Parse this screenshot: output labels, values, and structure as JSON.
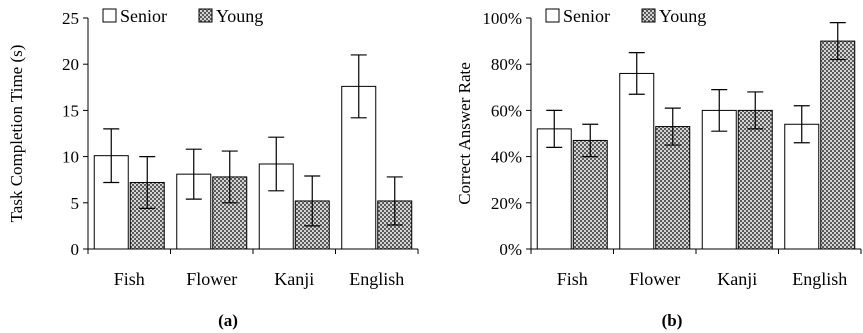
{
  "chart_data": [
    {
      "type": "bar",
      "caption": "(a)",
      "categories": [
        "Fish",
        "Flower",
        "Kanji",
        "English"
      ],
      "ylabel": "Task Completion Time (s)",
      "ylim": [
        0,
        25
      ],
      "yticks": [
        0,
        5,
        10,
        15,
        20,
        25
      ],
      "ytick_labels": [
        "0",
        "5",
        "10",
        "15",
        "20",
        "25"
      ],
      "legend_position": "top-left",
      "series": [
        {
          "name": "Senior",
          "values": [
            10.1,
            8.1,
            9.2,
            17.6
          ],
          "errors": [
            2.9,
            2.7,
            2.9,
            3.4
          ],
          "color": "#ffffff"
        },
        {
          "name": "Young",
          "values": [
            7.2,
            7.8,
            5.2,
            5.2
          ],
          "errors": [
            2.8,
            2.8,
            2.7,
            2.6
          ],
          "color": "#8a8a8a"
        }
      ]
    },
    {
      "type": "bar",
      "caption": "(b)",
      "categories": [
        "Fish",
        "Flower",
        "Kanji",
        "English"
      ],
      "ylabel": "Correct Answer Rate",
      "ylim": [
        0,
        100
      ],
      "yticks": [
        0,
        20,
        40,
        60,
        80,
        100
      ],
      "ytick_labels": [
        "0%",
        "20%",
        "40%",
        "60%",
        "80%",
        "100%"
      ],
      "legend_position": "top-left",
      "series": [
        {
          "name": "Senior",
          "values": [
            52,
            76,
            60,
            54
          ],
          "errors": [
            8,
            9,
            9,
            8
          ],
          "color": "#ffffff"
        },
        {
          "name": "Young",
          "values": [
            47,
            53,
            60,
            90
          ],
          "errors": [
            7,
            8,
            8,
            8
          ],
          "color": "#8a8a8a"
        }
      ]
    }
  ]
}
